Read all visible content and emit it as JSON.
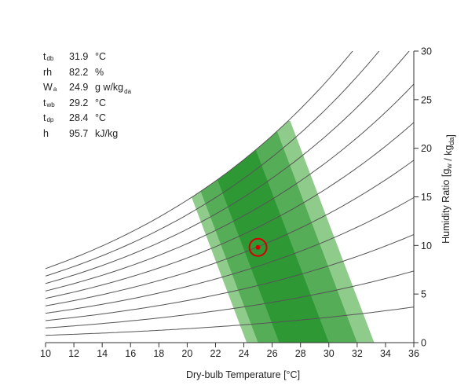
{
  "readout": [
    {
      "sym": "t",
      "sub": "db",
      "value": "31.9",
      "unit": "°C",
      "unit_sub": ""
    },
    {
      "sym": "rh",
      "sub": "",
      "value": "82.2",
      "unit": "%",
      "unit_sub": ""
    },
    {
      "sym": "W",
      "sub": "a",
      "value": "24.9",
      "unit": "g w/kg",
      "unit_sub": "da"
    },
    {
      "sym": "t",
      "sub": "wb",
      "value": "29.2",
      "unit": "°C",
      "unit_sub": ""
    },
    {
      "sym": "t",
      "sub": "dp",
      "value": "28.4",
      "unit": "°C",
      "unit_sub": ""
    },
    {
      "sym": "h",
      "sub": "",
      "value": "95.7",
      "unit": "kJ/kg",
      "unit_sub": ""
    }
  ],
  "colors": {
    "zone_light": "#8fcc8b",
    "zone_mid": "#56ad57",
    "zone_dark": "#2e9835",
    "rh_curve": "#555555",
    "marker": "#d40000",
    "axis": "#333333"
  },
  "chart_data": {
    "type": "psychrometric",
    "xlabel": "Dry-bulb Temperature [°C]",
    "ylabel": "Humidity Ratio [g_w / kg_da]",
    "xlim": [
      10,
      36
    ],
    "ylim": [
      0,
      30
    ],
    "x_ticks": [
      10,
      12,
      14,
      16,
      18,
      20,
      22,
      24,
      26,
      28,
      30,
      32,
      34,
      36
    ],
    "y_ticks": [
      0,
      5,
      10,
      15,
      20,
      25,
      30
    ],
    "rh_curves_percent": [
      10,
      20,
      30,
      40,
      50,
      60,
      70,
      80,
      90,
      100
    ],
    "comfort_zone": {
      "max_humidity_ratio": 22.8,
      "bands": [
        {
          "name": "outer",
          "bottom_x": [
            24.2,
            33.2
          ],
          "slope_dx_per_gkg": -0.26
        },
        {
          "name": "middle",
          "bottom_x": [
            25.0,
            32.0
          ],
          "slope_dx_per_gkg": -0.26
        },
        {
          "name": "inner",
          "bottom_x": [
            26.5,
            30.0
          ],
          "slope_dx_per_gkg": -0.26
        }
      ]
    },
    "current_point": {
      "x": 25.0,
      "y": 9.8
    }
  }
}
